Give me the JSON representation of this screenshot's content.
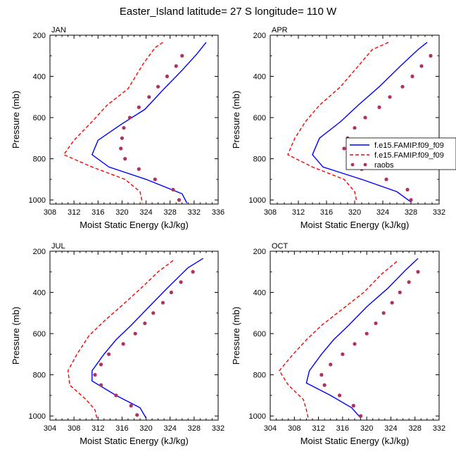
{
  "title": "Easter_Island  latitude= 27 S longitude= 110 W",
  "legend": {
    "entries": [
      {
        "label": "f.e15.FAMIP.f09_f09",
        "color": "#0000ff",
        "style": "solid"
      },
      {
        "label": "f.e15.FAMIP.f09_f09",
        "color": "#ff0000",
        "style": "dashed"
      },
      {
        "label": "raobs",
        "color": "#b03060",
        "style": "markers"
      }
    ]
  },
  "chart_data": [
    {
      "type": "line",
      "panel": "JAN",
      "xlabel": "Moist Static Energy (kJ/kg)",
      "ylabel": "Pressure (mb)",
      "xlim": [
        308,
        336
      ],
      "ylim": [
        1020,
        200
      ],
      "xticks": [
        308,
        312,
        316,
        320,
        324,
        328,
        332,
        336
      ],
      "yticks": [
        200,
        400,
        600,
        800,
        1000
      ],
      "series": [
        {
          "name": "f.e15.FAMIP.f09_f09",
          "color": "#0000ff",
          "dash": "solid",
          "points": [
            [
              334.0,
              235
            ],
            [
              332.5,
              290
            ],
            [
              330.0,
              370
            ],
            [
              327.0,
              460
            ],
            [
              323.8,
              560
            ],
            [
              320.0,
              630
            ],
            [
              316.0,
              710
            ],
            [
              315.0,
              780
            ],
            [
              317.8,
              840
            ],
            [
              324.0,
              900
            ],
            [
              330.0,
              970
            ],
            [
              330.8,
              1015
            ]
          ]
        },
        {
          "name": "f.e15.FAMIP.f09_f09",
          "color": "#ff0000",
          "dash": "dashed",
          "points": [
            [
              326.8,
              235
            ],
            [
              325.5,
              260
            ],
            [
              323.5,
              340
            ],
            [
              321.0,
              460
            ],
            [
              317.5,
              540
            ],
            [
              315.0,
              620
            ],
            [
              312.0,
              710
            ],
            [
              310.3,
              780
            ],
            [
              315.0,
              840
            ],
            [
              320.5,
              900
            ],
            [
              323.0,
              960
            ],
            [
              323.4,
              1015
            ]
          ]
        },
        {
          "name": "raobs",
          "color": "#b03060",
          "type": "scatter",
          "points": [
            [
              330.0,
              300
            ],
            [
              329.0,
              350
            ],
            [
              327.5,
              400
            ],
            [
              326.0,
              450
            ],
            [
              324.5,
              500
            ],
            [
              322.8,
              550
            ],
            [
              321.3,
              600
            ],
            [
              320.3,
              650
            ],
            [
              320.0,
              700
            ],
            [
              319.8,
              750
            ],
            [
              320.5,
              800
            ],
            [
              322.8,
              850
            ],
            [
              325.5,
              900
            ],
            [
              328.5,
              950
            ],
            [
              329.5,
              1000
            ]
          ]
        }
      ]
    },
    {
      "type": "line",
      "panel": "APR",
      "xlabel": "Moist Static Energy (kJ/kg)",
      "ylabel": "Pressure (mb)",
      "xlim": [
        308,
        332
      ],
      "ylim": [
        1020,
        200
      ],
      "xticks": [
        308,
        312,
        316,
        320,
        324,
        328,
        332
      ],
      "yticks": [
        200,
        400,
        600,
        800,
        1000
      ],
      "series": [
        {
          "name": "f.e15.FAMIP.f09_f09",
          "color": "#0000ff",
          "dash": "solid",
          "points": [
            [
              330.3,
              235
            ],
            [
              329.0,
              270
            ],
            [
              326.5,
              350
            ],
            [
              323.5,
              450
            ],
            [
              320.5,
              540
            ],
            [
              318.0,
              620
            ],
            [
              315.0,
              700
            ],
            [
              314.0,
              780
            ],
            [
              315.5,
              840
            ],
            [
              321.0,
              900
            ],
            [
              326.0,
              960
            ],
            [
              328.0,
              1010
            ]
          ]
        },
        {
          "name": "f.e15.FAMIP.f09_f09",
          "color": "#ff0000",
          "dash": "dashed",
          "points": [
            [
              324.8,
              235
            ],
            [
              322.5,
              270
            ],
            [
              320.5,
              350
            ],
            [
              318.0,
              450
            ],
            [
              315.0,
              540
            ],
            [
              313.0,
              620
            ],
            [
              311.5,
              700
            ],
            [
              310.5,
              780
            ],
            [
              314.0,
              840
            ],
            [
              318.5,
              900
            ],
            [
              320.0,
              960
            ],
            [
              320.3,
              1010
            ]
          ]
        },
        {
          "name": "raobs",
          "color": "#b03060",
          "type": "scatter",
          "points": [
            [
              330.8,
              300
            ],
            [
              329.5,
              350
            ],
            [
              328.2,
              400
            ],
            [
              326.8,
              450
            ],
            [
              325.0,
              500
            ],
            [
              323.5,
              550
            ],
            [
              321.5,
              600
            ],
            [
              320.0,
              650
            ],
            [
              319.0,
              700
            ],
            [
              318.5,
              750
            ],
            [
              319.5,
              800
            ],
            [
              321.0,
              850
            ],
            [
              324.5,
              900
            ],
            [
              327.5,
              950
            ],
            [
              328.0,
              1000
            ]
          ]
        }
      ]
    },
    {
      "type": "line",
      "panel": "JUL",
      "xlabel": "Moist Static Energy (kJ/kg)",
      "ylabel": "Pressure (mb)",
      "xlim": [
        304,
        332
      ],
      "ylim": [
        1020,
        200
      ],
      "xticks": [
        304,
        308,
        312,
        316,
        320,
        324,
        328,
        332
      ],
      "yticks": [
        200,
        400,
        600,
        800,
        1000
      ],
      "series": [
        {
          "name": "f.e15.FAMIP.f09_f09",
          "color": "#0000ff",
          "dash": "solid",
          "points": [
            [
              329.5,
              235
            ],
            [
              327.0,
              280
            ],
            [
              323.5,
              380
            ],
            [
              320.5,
              470
            ],
            [
              317.5,
              560
            ],
            [
              315.0,
              630
            ],
            [
              313.0,
              700
            ],
            [
              311.0,
              780
            ],
            [
              311.0,
              830
            ],
            [
              315.0,
              900
            ],
            [
              319.0,
              960
            ],
            [
              320.0,
              1010
            ]
          ]
        },
        {
          "name": "f.e15.FAMIP.f09_f09",
          "color": "#ff0000",
          "dash": "dashed",
          "points": [
            [
              324.5,
              245
            ],
            [
              322.0,
              300
            ],
            [
              319.5,
              370
            ],
            [
              316.5,
              450
            ],
            [
              313.0,
              540
            ],
            [
              310.5,
              610
            ],
            [
              308.5,
              700
            ],
            [
              307.0,
              780
            ],
            [
              307.3,
              850
            ],
            [
              310.0,
              920
            ],
            [
              311.5,
              970
            ],
            [
              311.8,
              1010
            ]
          ]
        },
        {
          "name": "raobs",
          "color": "#b03060",
          "type": "scatter",
          "points": [
            [
              327.8,
              300
            ],
            [
              325.8,
              350
            ],
            [
              324.2,
              400
            ],
            [
              322.8,
              450
            ],
            [
              321.2,
              500
            ],
            [
              319.8,
              550
            ],
            [
              318.2,
              600
            ],
            [
              316.2,
              650
            ],
            [
              313.8,
              700
            ],
            [
              312.5,
              750
            ],
            [
              311.5,
              800
            ],
            [
              312.5,
              850
            ],
            [
              315.0,
              900
            ],
            [
              317.5,
              950
            ],
            [
              318.5,
              995
            ]
          ]
        }
      ]
    },
    {
      "type": "line",
      "panel": "OCT",
      "xlabel": "Moist Static Energy (kJ/kg)",
      "ylabel": "Pressure (mb)",
      "xlim": [
        304,
        332
      ],
      "ylim": [
        1020,
        200
      ],
      "xticks": [
        304,
        308,
        312,
        316,
        320,
        324,
        328,
        332
      ],
      "yticks": [
        200,
        400,
        600,
        800,
        1000
      ],
      "series": [
        {
          "name": "f.e15.FAMIP.f09_f09",
          "color": "#0000ff",
          "dash": "solid",
          "points": [
            [
              328.5,
              235
            ],
            [
              326.5,
              290
            ],
            [
              323.5,
              380
            ],
            [
              320.0,
              470
            ],
            [
              317.0,
              560
            ],
            [
              314.5,
              630
            ],
            [
              312.5,
              700
            ],
            [
              310.5,
              780
            ],
            [
              310.0,
              840
            ],
            [
              314.0,
              900
            ],
            [
              317.5,
              960
            ],
            [
              319.0,
              1010
            ]
          ]
        },
        {
          "name": "f.e15.FAMIP.f09_f09",
          "color": "#ff0000",
          "dash": "dashed",
          "points": [
            [
              325.0,
              250
            ],
            [
              322.5,
              310
            ],
            [
              319.5,
              400
            ],
            [
              316.0,
              480
            ],
            [
              312.5,
              560
            ],
            [
              310.0,
              630
            ],
            [
              307.5,
              710
            ],
            [
              305.5,
              780
            ],
            [
              307.0,
              850
            ],
            [
              309.5,
              920
            ],
            [
              310.0,
              970
            ],
            [
              310.3,
              1010
            ]
          ]
        },
        {
          "name": "raobs",
          "color": "#b03060",
          "type": "scatter",
          "points": [
            [
              328.5,
              300
            ],
            [
              327.0,
              350
            ],
            [
              325.5,
              400
            ],
            [
              324.2,
              450
            ],
            [
              322.8,
              500
            ],
            [
              321.5,
              550
            ],
            [
              320.0,
              600
            ],
            [
              318.0,
              650
            ],
            [
              316.0,
              700
            ],
            [
              314.0,
              750
            ],
            [
              312.5,
              800
            ],
            [
              313.0,
              850
            ],
            [
              315.5,
              900
            ],
            [
              317.8,
              950
            ],
            [
              319.0,
              1000
            ]
          ]
        }
      ]
    }
  ]
}
